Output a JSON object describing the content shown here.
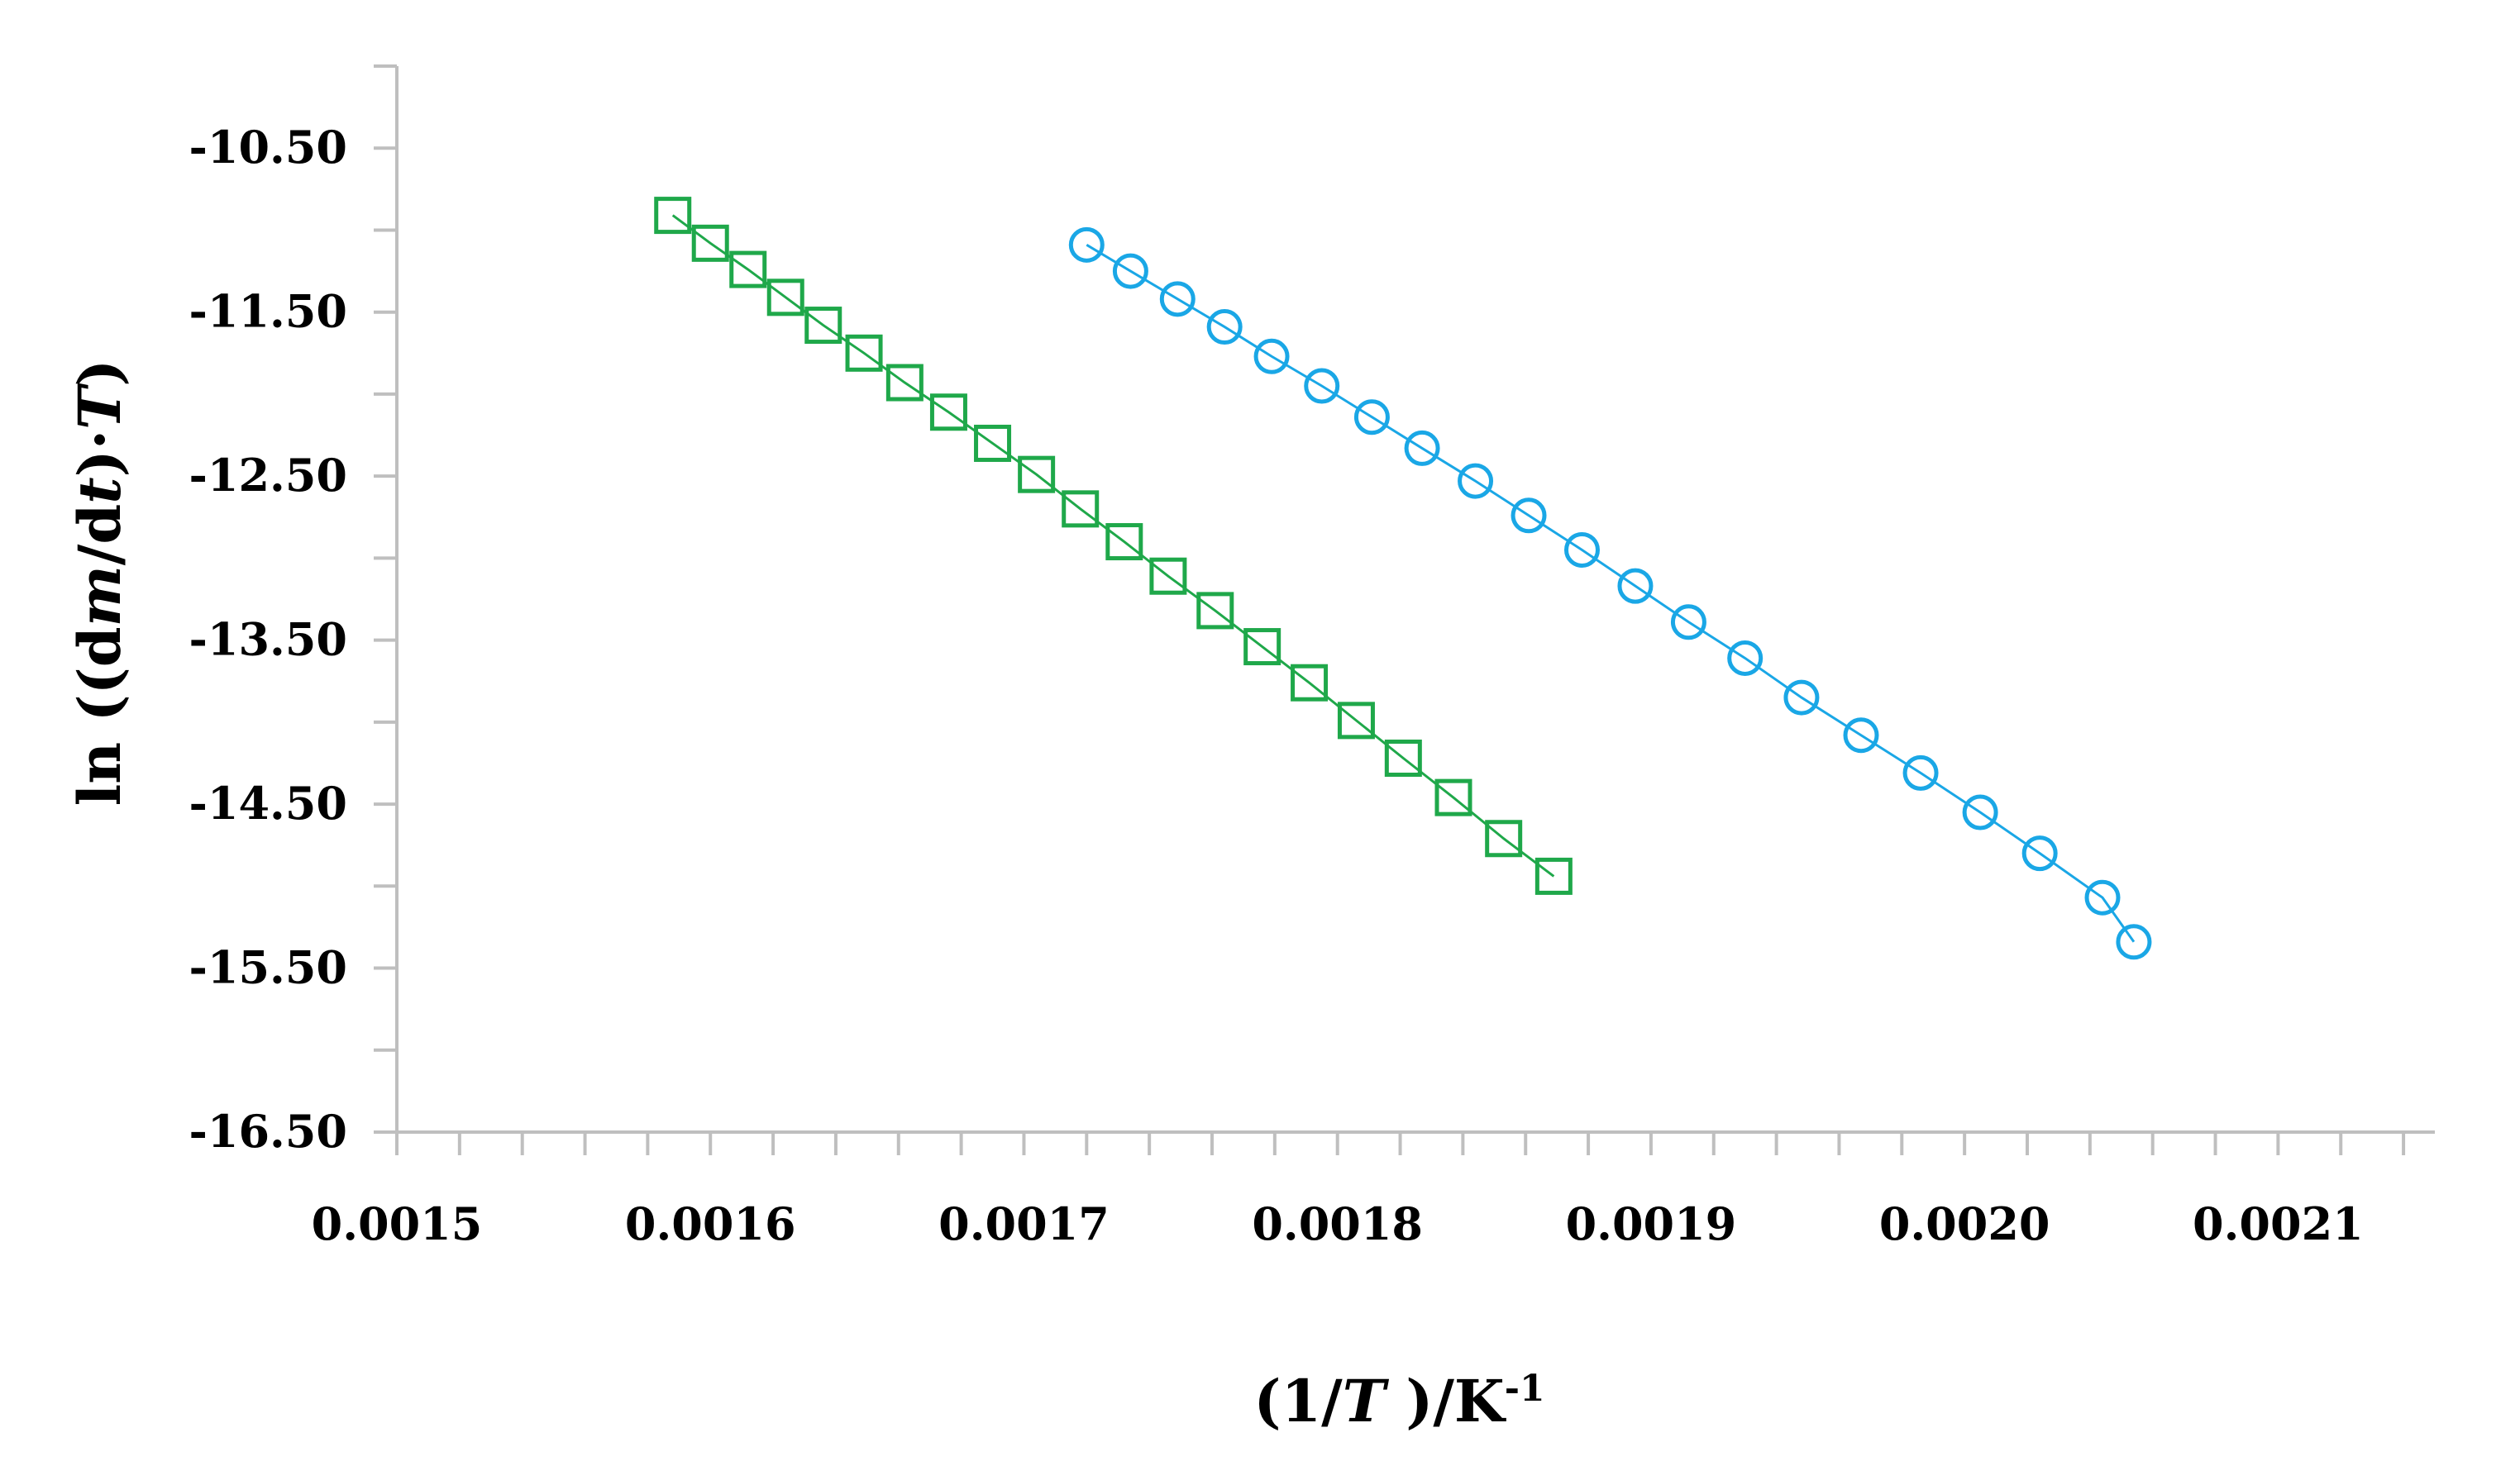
{
  "chart_data": {
    "type": "scatter",
    "title": "",
    "xlabel": "(1/T )/K-1",
    "xlabel_parts": [
      {
        "text": "(1/",
        "style": "normal"
      },
      {
        "text": "T",
        "style": "italic"
      },
      {
        "text": " )/K",
        "style": "normal"
      },
      {
        "text": "-1",
        "style": "sup"
      }
    ],
    "ylabel": "ln ((dm/dt)·T)",
    "ylabel_parts": [
      {
        "text": "ln ((d",
        "style": "normal"
      },
      {
        "text": "m",
        "style": "italic"
      },
      {
        "text": "/d",
        "style": "normal"
      },
      {
        "text": "t",
        "style": "italic"
      },
      {
        "text": ")·",
        "style": "normal"
      },
      {
        "text": "T",
        "style": "italic"
      },
      {
        "text": ")",
        "style": "normal"
      }
    ],
    "xlim": [
      0.0015,
      0.00215
    ],
    "ylim": [
      -16.5,
      -10.0
    ],
    "x_ticks": [
      "0.0015",
      "0.0016",
      "0.0017",
      "0.0018",
      "0.0019",
      "0.0020",
      "0.0021"
    ],
    "x_tick_values": [
      0.0015,
      0.0016,
      0.0017,
      0.0018,
      0.0019,
      0.002,
      0.0021
    ],
    "y_ticks": [
      "-10.50",
      "-11.50",
      "-12.50",
      "-13.50",
      "-14.50",
      "-15.50",
      "-16.50"
    ],
    "y_tick_values": [
      -10.5,
      -11.5,
      -12.5,
      -13.5,
      -14.5,
      -15.5,
      -16.5
    ],
    "grid": false,
    "legend": "none",
    "axis_color": "#bfbfbf",
    "series": [
      {
        "marker": "square",
        "color": "#1fa84a",
        "x": [
          0.001588,
          0.0016,
          0.001612,
          0.001624,
          0.001636,
          0.001649,
          0.001662,
          0.001676,
          0.00169,
          0.001704,
          0.001718,
          0.001732,
          0.001746,
          0.001761,
          0.001776,
          0.001791,
          0.001806,
          0.001821,
          0.001837,
          0.001853,
          0.001869
        ],
        "y": [
          -10.91,
          -11.08,
          -11.24,
          -11.41,
          -11.58,
          -11.75,
          -11.93,
          -12.11,
          -12.3,
          -12.49,
          -12.7,
          -12.9,
          -13.11,
          -13.32,
          -13.54,
          -13.76,
          -13.99,
          -14.22,
          -14.46,
          -14.71,
          -14.94
        ]
      },
      {
        "marker": "circle",
        "color": "#1aa7e6",
        "x": [
          0.00172,
          0.001734,
          0.001749,
          0.001764,
          0.001779,
          0.001795,
          0.001811,
          0.001827,
          0.001844,
          0.001861,
          0.001878,
          0.001895,
          0.001912,
          0.00193,
          0.001948,
          0.001967,
          0.001986,
          0.002005,
          0.002024,
          0.002044,
          0.002054
        ],
        "y": [
          -11.09,
          -11.25,
          -11.42,
          -11.59,
          -11.77,
          -11.95,
          -12.14,
          -12.33,
          -12.53,
          -12.74,
          -12.95,
          -13.17,
          -13.39,
          -13.61,
          -13.85,
          -14.08,
          -14.31,
          -14.55,
          -14.8,
          -15.07,
          -15.34
        ]
      }
    ]
  }
}
